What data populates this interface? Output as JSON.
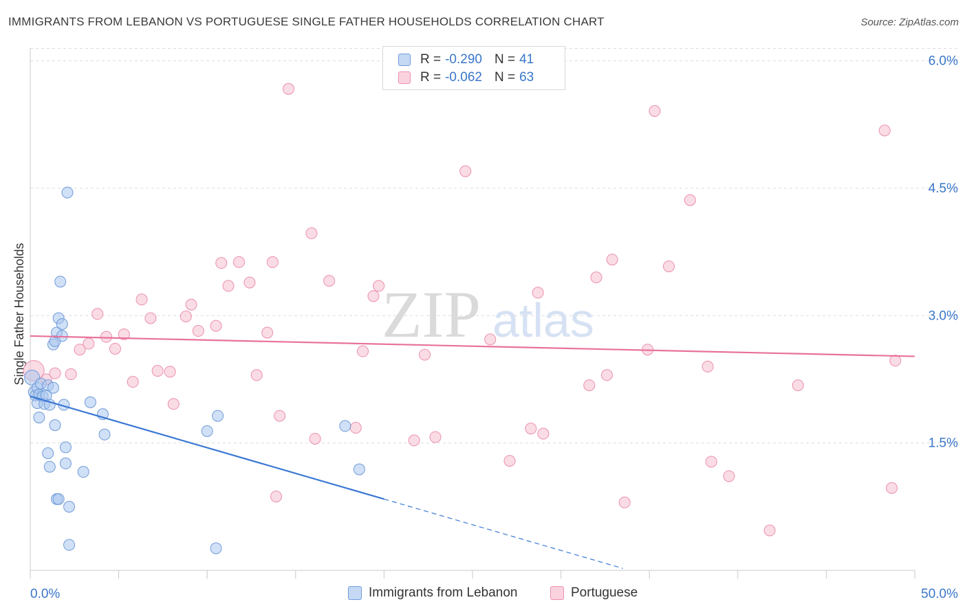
{
  "title": "IMMIGRANTS FROM LEBANON VS PORTUGUESE SINGLE FATHER HOUSEHOLDS CORRELATION CHART",
  "source": "Source: ZipAtlas.com",
  "watermark": {
    "zip": "ZIP",
    "atlas": "atlas"
  },
  "legend": {
    "rows": [
      {
        "r_label": "R =",
        "r_value": "-0.290",
        "n_label": "N =",
        "n_value": "41"
      },
      {
        "r_label": "R =",
        "r_value": "-0.062",
        "n_label": "N =",
        "n_value": "63"
      }
    ]
  },
  "bottom_legend": [
    {
      "label": "Immigrants from Lebanon"
    },
    {
      "label": "Portuguese"
    }
  ],
  "colors": {
    "blue_fill": "#a9c6ee",
    "blue_stroke": "#6f9ad8",
    "blue_line": "#3b78d4",
    "pink_fill": "#f6bfd0",
    "pink_stroke": "#eb8fae",
    "pink_line": "#e8719a",
    "axis_text": "#3a76c9",
    "grid": "#dcdcdc"
  },
  "chart_data": {
    "type": "scatter",
    "title": "IMMIGRANTS FROM LEBANON VS PORTUGUESE SINGLE FATHER HOUSEHOLDS CORRELATION CHART",
    "xlabel": "",
    "ylabel": "Single Father Households",
    "xlim": [
      0,
      50
    ],
    "ylim": [
      0,
      6.15
    ],
    "x_tick_labels": [
      "0.0%",
      "50.0%"
    ],
    "y_ticks": [
      1.5,
      3.0,
      4.5,
      6.0
    ],
    "y_tick_labels": [
      "1.5%",
      "3.0%",
      "4.5%",
      "6.0%"
    ],
    "series": [
      {
        "name": "Immigrants from Lebanon",
        "r": -0.29,
        "n": 41,
        "trend": {
          "x0": 0,
          "y0": 2.05,
          "x1": 20,
          "y1": 0.84,
          "dash_to_x": 33.5
        },
        "points": [
          [
            0.1,
            2.27
          ],
          [
            0.2,
            2.1
          ],
          [
            0.3,
            2.06
          ],
          [
            0.4,
            2.15
          ],
          [
            0.4,
            1.97
          ],
          [
            0.5,
            2.07
          ],
          [
            0.5,
            1.8
          ],
          [
            0.6,
            2.2
          ],
          [
            0.7,
            2.05
          ],
          [
            0.8,
            1.96
          ],
          [
            0.9,
            2.06
          ],
          [
            1.0,
            1.38
          ],
          [
            1.0,
            2.18
          ],
          [
            1.1,
            1.95
          ],
          [
            1.1,
            1.22
          ],
          [
            1.3,
            2.15
          ],
          [
            1.3,
            2.66
          ],
          [
            1.4,
            2.7
          ],
          [
            1.4,
            1.71
          ],
          [
            1.5,
            2.8
          ],
          [
            1.5,
            0.84
          ],
          [
            1.6,
            0.84
          ],
          [
            1.6,
            2.97
          ],
          [
            1.7,
            3.4
          ],
          [
            1.8,
            2.9
          ],
          [
            1.8,
            2.76
          ],
          [
            1.9,
            1.95
          ],
          [
            2.0,
            1.26
          ],
          [
            2.0,
            1.45
          ],
          [
            2.1,
            4.45
          ],
          [
            2.2,
            0.3
          ],
          [
            2.2,
            0.75
          ],
          [
            3.0,
            1.16
          ],
          [
            3.4,
            1.98
          ],
          [
            4.1,
            1.84
          ],
          [
            4.2,
            1.6
          ],
          [
            10.0,
            1.64
          ],
          [
            10.5,
            0.26
          ],
          [
            10.6,
            1.82
          ],
          [
            17.8,
            1.7
          ],
          [
            18.6,
            1.19
          ]
        ]
      },
      {
        "name": "Portuguese",
        "r": -0.062,
        "n": 63,
        "trend": {
          "x0": 0,
          "y0": 2.76,
          "x1": 50,
          "y1": 2.52
        },
        "points": [
          [
            0.2,
            2.35
          ],
          [
            0.9,
            2.25
          ],
          [
            1.4,
            2.32
          ],
          [
            2.3,
            2.31
          ],
          [
            2.8,
            2.6
          ],
          [
            3.3,
            2.67
          ],
          [
            3.8,
            3.02
          ],
          [
            4.3,
            2.75
          ],
          [
            4.8,
            2.61
          ],
          [
            5.3,
            2.78
          ],
          [
            5.8,
            2.22
          ],
          [
            6.3,
            3.19
          ],
          [
            6.8,
            2.97
          ],
          [
            7.2,
            2.35
          ],
          [
            7.9,
            2.34
          ],
          [
            8.1,
            1.96
          ],
          [
            8.8,
            2.99
          ],
          [
            9.1,
            3.13
          ],
          [
            9.5,
            2.82
          ],
          [
            10.5,
            2.88
          ],
          [
            10.8,
            3.62
          ],
          [
            11.2,
            3.35
          ],
          [
            11.8,
            3.63
          ],
          [
            12.4,
            3.39
          ],
          [
            12.8,
            2.3
          ],
          [
            13.4,
            2.8
          ],
          [
            13.7,
            3.63
          ],
          [
            13.9,
            0.87
          ],
          [
            14.1,
            1.82
          ],
          [
            14.6,
            5.67
          ],
          [
            15.9,
            3.97
          ],
          [
            16.1,
            1.55
          ],
          [
            16.9,
            3.41
          ],
          [
            18.4,
            1.68
          ],
          [
            18.8,
            2.58
          ],
          [
            19.4,
            3.23
          ],
          [
            19.7,
            3.35
          ],
          [
            21.7,
            1.53
          ],
          [
            22.3,
            2.54
          ],
          [
            22.9,
            1.57
          ],
          [
            24.6,
            4.7
          ],
          [
            26.0,
            2.72
          ],
          [
            27.1,
            1.29
          ],
          [
            28.3,
            1.67
          ],
          [
            28.7,
            3.27
          ],
          [
            29.0,
            1.61
          ],
          [
            31.6,
            2.18
          ],
          [
            32.0,
            3.45
          ],
          [
            32.6,
            2.3
          ],
          [
            32.9,
            3.66
          ],
          [
            33.6,
            0.8
          ],
          [
            34.9,
            2.6
          ],
          [
            35.3,
            5.41
          ],
          [
            36.1,
            3.58
          ],
          [
            37.3,
            4.36
          ],
          [
            38.3,
            2.4
          ],
          [
            38.5,
            1.28
          ],
          [
            39.5,
            1.11
          ],
          [
            41.8,
            0.47
          ],
          [
            43.4,
            2.18
          ],
          [
            48.3,
            5.18
          ],
          [
            48.7,
            0.97
          ],
          [
            48.9,
            2.47
          ]
        ]
      }
    ]
  }
}
